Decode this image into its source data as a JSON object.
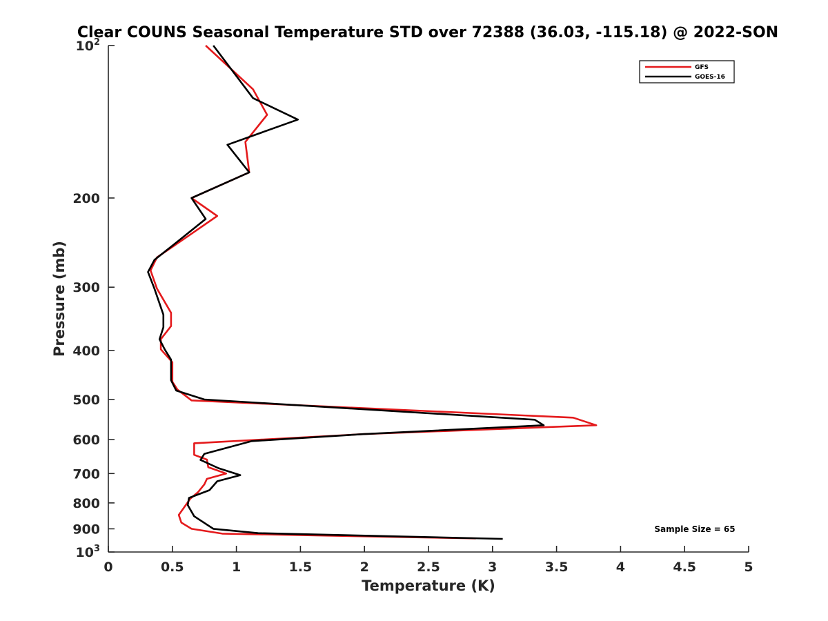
{
  "chart_data": {
    "type": "line",
    "title": "Clear COUNS Seasonal Temperature STD over 72388 (36.03, -115.18) @ 2022-SON",
    "xlabel": "Temperature (K)",
    "ylabel": "Pressure (mb)",
    "xlim": [
      0,
      5
    ],
    "ylim": [
      100,
      1000
    ],
    "y_scale": "log",
    "y_reversed": true,
    "grid": false,
    "legend_position": "top-right",
    "x_ticks": [
      0,
      0.5,
      1,
      1.5,
      2,
      2.5,
      3,
      3.5,
      4,
      4.5,
      5
    ],
    "x_tick_labels": [
      "0",
      "0.5",
      "1",
      "1.5",
      "2",
      "2.5",
      "3",
      "3.5",
      "4",
      "4.5",
      "5"
    ],
    "y_ticks": [
      {
        "value": 100,
        "base": "10",
        "exp": "2"
      },
      {
        "value": 200,
        "label": "200"
      },
      {
        "value": 300,
        "label": "300"
      },
      {
        "value": 400,
        "label": "400"
      },
      {
        "value": 500,
        "label": "500"
      },
      {
        "value": 600,
        "label": "600"
      },
      {
        "value": 700,
        "label": "700"
      },
      {
        "value": 800,
        "label": "800"
      },
      {
        "value": 900,
        "label": "900"
      },
      {
        "value": 1000,
        "base": "10",
        "exp": "3"
      }
    ],
    "annotation": "Sample Size = 65",
    "series": [
      {
        "name": "GFS",
        "color": "#e41a1c",
        "points": [
          [
            0.76,
            100
          ],
          [
            1.13,
            122
          ],
          [
            1.24,
            137
          ],
          [
            1.07,
            155
          ],
          [
            1.1,
            178
          ],
          [
            0.65,
            200
          ],
          [
            0.85,
            217
          ],
          [
            0.6,
            240
          ],
          [
            0.38,
            262
          ],
          [
            0.33,
            278
          ],
          [
            0.38,
            302
          ],
          [
            0.49,
            337
          ],
          [
            0.49,
            358
          ],
          [
            0.41,
            380
          ],
          [
            0.41,
            398
          ],
          [
            0.5,
            422
          ],
          [
            0.5,
            437
          ],
          [
            0.5,
            461
          ],
          [
            0.54,
            478
          ],
          [
            0.65,
            502
          ],
          [
            3.63,
            543
          ],
          [
            3.81,
            562
          ],
          [
            2.0,
            585
          ],
          [
            0.67,
            610
          ],
          [
            0.67,
            643
          ],
          [
            0.77,
            657
          ],
          [
            0.78,
            680
          ],
          [
            0.92,
            700
          ],
          [
            0.77,
            717
          ],
          [
            0.75,
            735
          ],
          [
            0.7,
            762
          ],
          [
            0.64,
            785
          ],
          [
            0.55,
            845
          ],
          [
            0.57,
            875
          ],
          [
            0.65,
            900
          ],
          [
            0.89,
            920
          ],
          [
            2.87,
            940
          ]
        ]
      },
      {
        "name": "GOES-16",
        "color": "#000000",
        "points": [
          [
            0.82,
            100
          ],
          [
            1.13,
            127
          ],
          [
            1.48,
            140
          ],
          [
            0.93,
            157
          ],
          [
            1.1,
            178
          ],
          [
            0.65,
            200
          ],
          [
            0.76,
            220
          ],
          [
            0.53,
            245
          ],
          [
            0.36,
            265
          ],
          [
            0.31,
            280
          ],
          [
            0.36,
            302
          ],
          [
            0.43,
            340
          ],
          [
            0.43,
            360
          ],
          [
            0.4,
            380
          ],
          [
            0.44,
            398
          ],
          [
            0.49,
            417
          ],
          [
            0.49,
            437
          ],
          [
            0.49,
            458
          ],
          [
            0.53,
            480
          ],
          [
            0.75,
            500
          ],
          [
            3.33,
            548
          ],
          [
            3.4,
            562
          ],
          [
            2.0,
            585
          ],
          [
            1.12,
            604
          ],
          [
            0.75,
            640
          ],
          [
            0.72,
            658
          ],
          [
            0.86,
            683
          ],
          [
            1.03,
            705
          ],
          [
            0.85,
            725
          ],
          [
            0.79,
            755
          ],
          [
            0.63,
            782
          ],
          [
            0.62,
            808
          ],
          [
            0.67,
            850
          ],
          [
            0.82,
            900
          ],
          [
            1.17,
            918
          ],
          [
            3.08,
            942
          ]
        ]
      }
    ]
  }
}
